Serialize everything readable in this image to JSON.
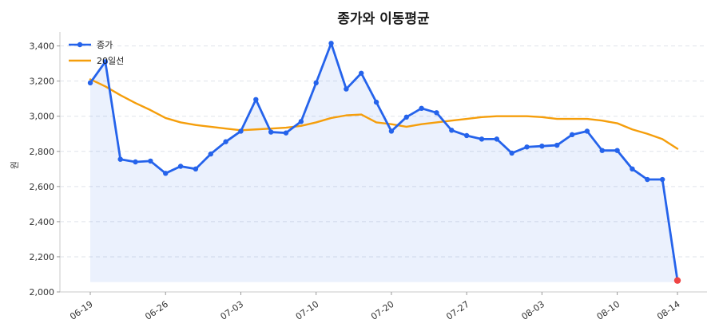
{
  "chart_data": {
    "type": "line",
    "title": "종가와 이동평균",
    "xlabel": "",
    "ylabel": "원",
    "ylim": [
      2000,
      3480
    ],
    "yticks": [
      2000,
      2200,
      2400,
      2600,
      2800,
      3000,
      3200,
      3400
    ],
    "ytick_labels": [
      "2,000",
      "2,200",
      "2,400",
      "2,600",
      "2,800",
      "3,000",
      "3,200",
      "3,400"
    ],
    "xtick_labels": [
      "06-19",
      "06-26",
      "07-03",
      "07-10",
      "07-20",
      "07-27",
      "08-03",
      "08-10",
      "08-14"
    ],
    "xtick_index": [
      0,
      5,
      10,
      15,
      20,
      25,
      30,
      35,
      39
    ],
    "grid": true,
    "legend_position": "top-left",
    "series": [
      {
        "name": "종가",
        "color": "#2563eb",
        "markers": true,
        "values": [
          3190,
          3310,
          2755,
          2740,
          2745,
          2675,
          2715,
          2700,
          2785,
          2855,
          2915,
          3095,
          2910,
          2905,
          2970,
          3190,
          3415,
          3155,
          3245,
          3080,
          2915,
          2995,
          3045,
          3020,
          2920,
          2890,
          2870,
          2870,
          2790,
          2825,
          2830,
          2835,
          2895,
          2915,
          2805,
          2805,
          2700,
          2640,
          2640,
          2065
        ],
        "last_point_color": "#ef4444"
      },
      {
        "name": "20일선",
        "color": "#f59e0b",
        "markers": false,
        "values": [
          3210,
          3170,
          3120,
          3075,
          3035,
          2990,
          2965,
          2950,
          2940,
          2930,
          2920,
          2925,
          2930,
          2935,
          2945,
          2965,
          2990,
          3005,
          3010,
          2965,
          2955,
          2940,
          2955,
          2965,
          2975,
          2985,
          2995,
          3000,
          3000,
          3000,
          2995,
          2985,
          2985,
          2985,
          2975,
          2960,
          2925,
          2900,
          2870,
          2815
        ]
      }
    ],
    "fill_under": {
      "series": "종가",
      "color": "#2563eb",
      "opacity": 0.09
    }
  }
}
